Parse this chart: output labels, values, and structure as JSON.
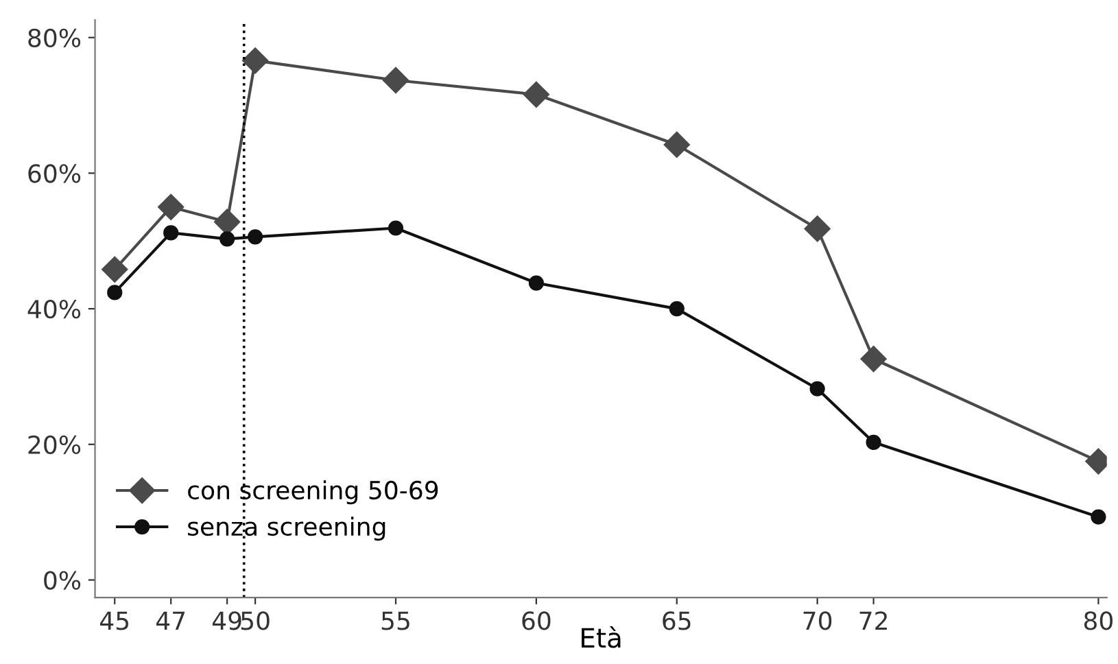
{
  "chart_data": {
    "type": "line",
    "xlabel": "Età",
    "legend": "bottom left",
    "grid": false,
    "xlim": [
      44.3,
      80.3
    ],
    "ylim": [
      -2.6,
      82.6
    ],
    "xticks": [
      45,
      47,
      49,
      50,
      55,
      60,
      65,
      70,
      72,
      80
    ],
    "yticks": [
      {
        "value": 0,
        "label": "0%"
      },
      {
        "value": 20,
        "label": "20%"
      },
      {
        "value": 40,
        "label": "40%"
      },
      {
        "value": 60,
        "label": "60%"
      },
      {
        "value": 80,
        "label": "80%"
      }
    ],
    "x": [
      45,
      47,
      49,
      50,
      55,
      60,
      65,
      70,
      72,
      80
    ],
    "series": [
      {
        "name": "con screening 50-69",
        "color": "#4a4a4a",
        "marker": "diamond",
        "values": [
          45.8,
          55.0,
          52.8,
          76.6,
          73.7,
          71.6,
          64.2,
          51.8,
          32.6,
          17.5
        ]
      },
      {
        "name": "senza screening",
        "color": "#111111",
        "marker": "circle",
        "values": [
          42.4,
          51.2,
          50.3,
          50.6,
          51.9,
          43.8,
          40.0,
          28.2,
          20.3,
          9.3
        ]
      }
    ],
    "ref_lines": [
      {
        "axis": "x",
        "value": 49.6,
        "color": "#000000",
        "line_style": "dotted"
      }
    ]
  }
}
